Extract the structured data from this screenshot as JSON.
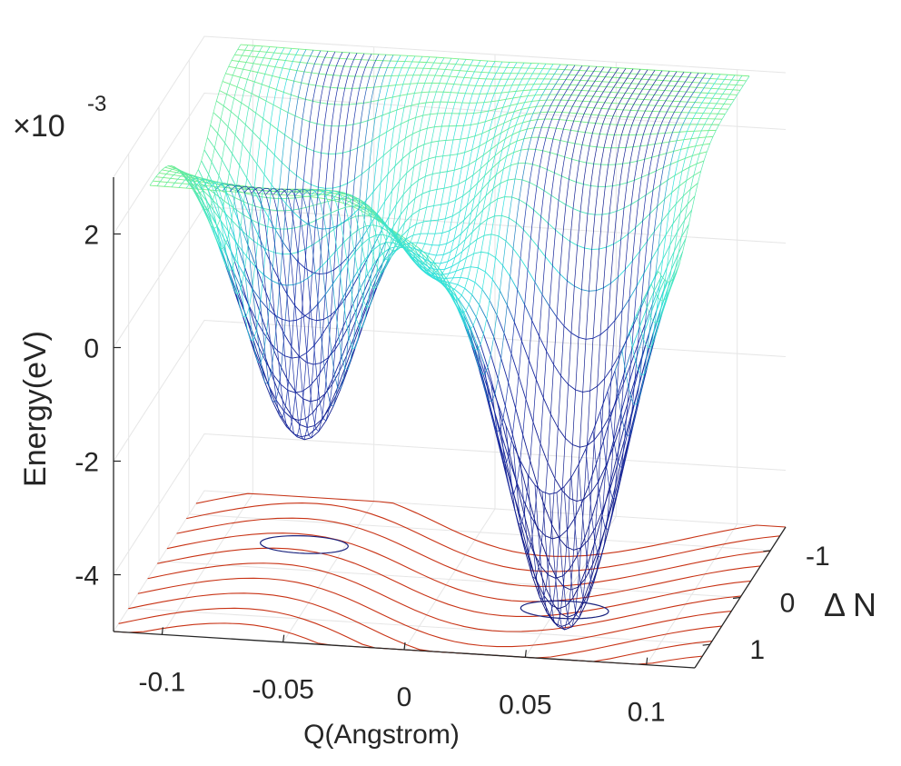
{
  "chart_data": {
    "type": "surface3d",
    "title": "",
    "xlabel": "Q(Angstrom)",
    "ylabel": "Δ N",
    "zlabel": "Energy(eV)",
    "z_multiplier_prefix": "×10",
    "z_multiplier_exponent": "-3",
    "xlim": [
      -0.12,
      0.12
    ],
    "ylim": [
      -1.5,
      1.5
    ],
    "zlim": [
      -5,
      3
    ],
    "x_ticks": [
      -0.1,
      -0.05,
      0,
      0.05,
      0.1
    ],
    "x_tick_labels": [
      "-0.1",
      "-0.05",
      "0",
      "0.05",
      "0.1"
    ],
    "y_ticks": [
      -1,
      0,
      1
    ],
    "y_tick_labels": [
      "-1",
      "0",
      "1"
    ],
    "z_ticks": [
      -4,
      -2,
      0,
      2
    ],
    "z_tick_labels": [
      "-4",
      "-2",
      "0",
      "2"
    ],
    "surface": {
      "description": "double-well potential energy surface E(Q, ΔN)",
      "minima": [
        {
          "Q": -0.06,
          "dN": 0,
          "E": -2.7
        },
        {
          "Q": 0.06,
          "dN": 1,
          "E": -4.9
        }
      ],
      "saddle": {
        "Q": 0,
        "E": 1.2
      },
      "plateau_E": 2.9,
      "colormap": [
        "#0a0a6e",
        "#1a2fa8",
        "#2de0e0",
        "#80f080"
      ]
    },
    "contours": {
      "min_contour_color": "#1a237e",
      "floor_contour_color": "#c83214"
    },
    "grid": true
  }
}
